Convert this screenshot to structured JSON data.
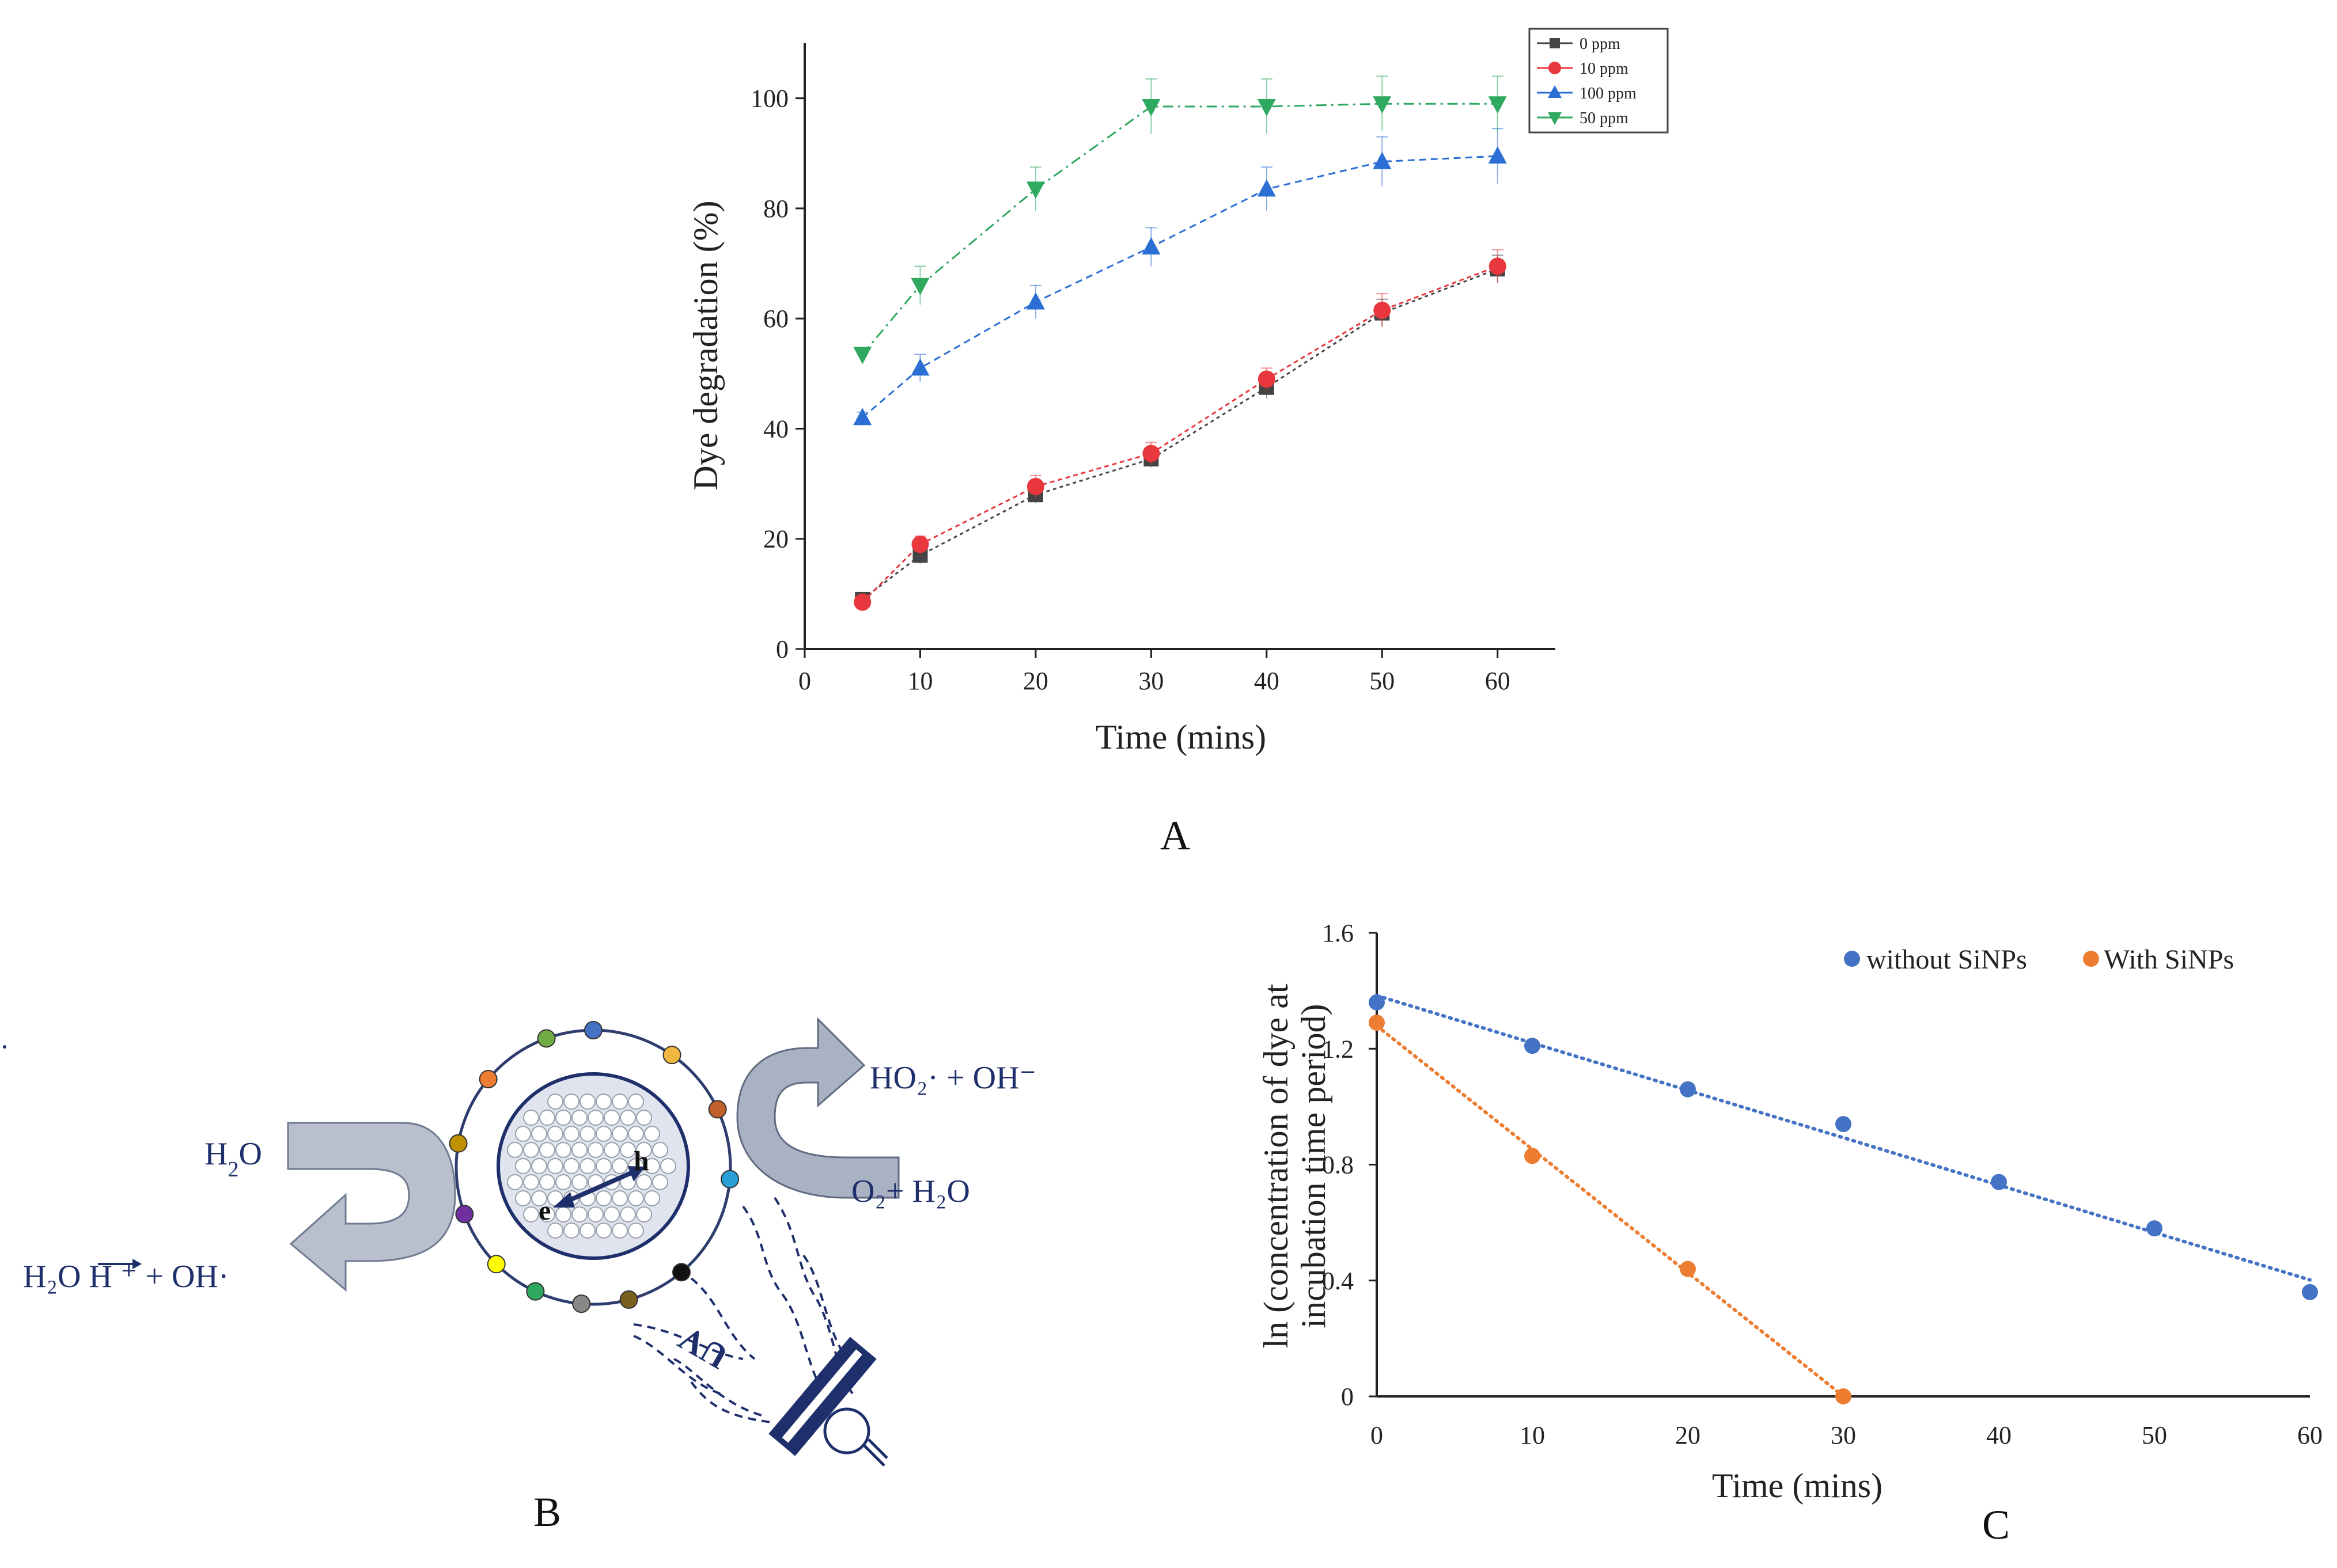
{
  "panels": {
    "a": "A",
    "b": "B",
    "c": "C"
  },
  "colors": {
    "s0": "#444444",
    "s10": "#e8383d",
    "s100": "#2b6fd6",
    "s50": "#2fa860",
    "c_without": "#4472c4",
    "c_with": "#ed7d31",
    "diagram": "#1f2f6b"
  },
  "chart_data": [
    {
      "type": "line",
      "title": "",
      "xlabel": "Time (mins)",
      "ylabel": "Dye degradation (%)",
      "xlim": [
        0,
        65
      ],
      "ylim": [
        0,
        110
      ],
      "xticks": [
        0,
        10,
        20,
        30,
        40,
        50,
        60
      ],
      "yticks": [
        0,
        20,
        40,
        60,
        80,
        100
      ],
      "legend_position": "top-right",
      "x": [
        5,
        10,
        20,
        30,
        40,
        50,
        60
      ],
      "series": [
        {
          "name": "0 ppm",
          "marker": "square",
          "color": "#444444",
          "values": [
            9,
            17,
            28,
            34.5,
            47.5,
            61,
            69
          ],
          "errors": [
            1,
            1.5,
            1.5,
            1.5,
            2,
            2.5,
            2.5
          ]
        },
        {
          "name": "10 ppm",
          "marker": "circle",
          "color": "#e8383d",
          "values": [
            8.5,
            19,
            29.5,
            35.5,
            49,
            61.5,
            69.5
          ],
          "errors": [
            1,
            1.5,
            2,
            2,
            2,
            3,
            3
          ]
        },
        {
          "name": "100 ppm",
          "marker": "triangle-up",
          "color": "#2b6fd6",
          "values": [
            42,
            51,
            63,
            73,
            83.5,
            88.5,
            89.5
          ],
          "errors": [
            1,
            2.5,
            3,
            3.5,
            4,
            4.5,
            5
          ]
        },
        {
          "name": "50 ppm",
          "marker": "triangle-down",
          "color": "#2fa860",
          "values": [
            53.5,
            66,
            83.5,
            98.5,
            98.5,
            99,
            99
          ],
          "errors": [
            1,
            3.5,
            4,
            5,
            5,
            5,
            5
          ]
        }
      ]
    },
    {
      "type": "scatter",
      "title": "",
      "xlabel": "Time (mins)",
      "ylabel": "ln (concentration of dye at incubation time period)",
      "ylabel_lines": [
        "ln (concentration of dye at",
        "incubation time period)"
      ],
      "xlim": [
        0,
        60
      ],
      "ylim": [
        0,
        1.6
      ],
      "xticks": [
        0,
        10,
        20,
        30,
        40,
        50,
        60
      ],
      "yticks": [
        0,
        0.4,
        0.8,
        1.2,
        1.6
      ],
      "ytick_labels": [
        "0",
        "0.4",
        "0.8",
        "1.2",
        "1.6"
      ],
      "legend_position": "top-right",
      "trendline": "linear, dotted",
      "series": [
        {
          "name": "without SiNPs",
          "color": "#4472c4",
          "x": [
            0,
            10,
            20,
            30,
            40,
            50,
            60
          ],
          "values": [
            1.36,
            1.21,
            1.06,
            0.94,
            0.74,
            0.58,
            0.36
          ]
        },
        {
          "name": "With SiNPs",
          "color": "#ed7d31",
          "x": [
            0,
            10,
            20,
            30
          ],
          "values": [
            1.29,
            0.83,
            0.44,
            0.0
          ]
        }
      ]
    }
  ],
  "diagram": {
    "h2o_in": "H",
    "h2o_in_sub": "2",
    "h2o_in_end": "O",
    "products_left": "H₂O H   ⁺ + OH·",
    "products_right": "HO₂· + OH⁻",
    "o2_h2o": "O₂+ H₂O",
    "electron": "e",
    "hole": "h",
    "uv": "UV"
  }
}
